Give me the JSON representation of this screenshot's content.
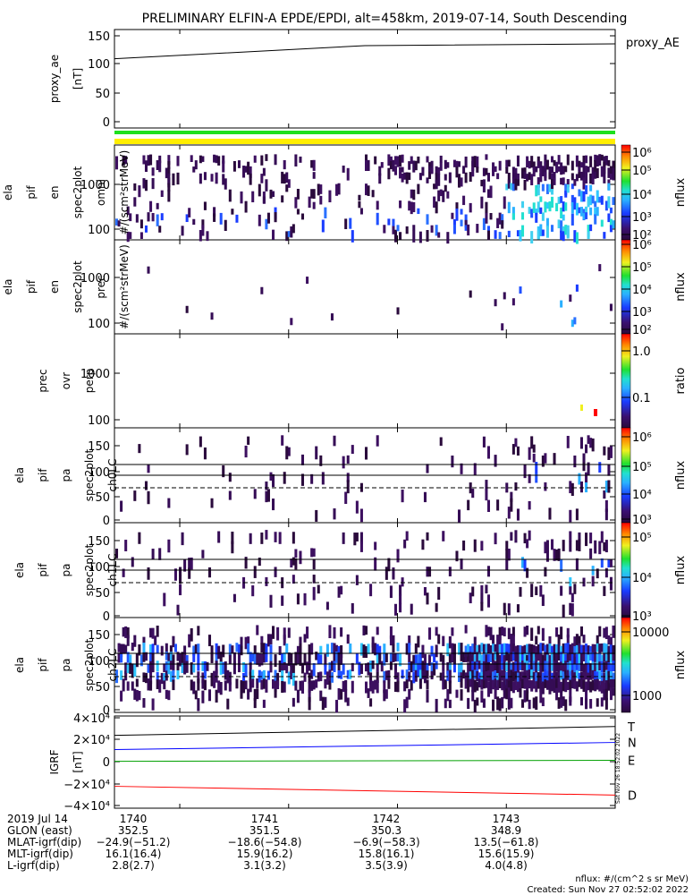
{
  "title": "PRELIMINARY ELFIN-A EPDE/EPDI, alt=458km, 2019-07-14, South Descending",
  "chart_data": [
    {
      "id": "proxy_ae",
      "type": "line",
      "ylabel": [
        "proxy_ae",
        "[nT]"
      ],
      "yticks": [
        "150",
        "100",
        "50",
        "0"
      ],
      "ylim": [
        -10,
        155
      ],
      "series": [
        {
          "name": "proxy_AE",
          "x": [
            0,
            0.5,
            1
          ],
          "values": [
            106,
            128,
            131
          ]
        }
      ]
    },
    {
      "id": "omni",
      "type": "heatmap",
      "ylabel": [
        "ela",
        "pif",
        "en",
        "spec2plot",
        "omni",
        "#/(scm²strMeV)"
      ],
      "yticks": [
        "1000",
        "100"
      ],
      "yscale": "log",
      "ylim": [
        80,
        9000
      ],
      "colorbar": {
        "label": "nflux",
        "ticks": [
          "10⁶",
          "10⁵",
          "10⁴",
          "10³",
          "10²"
        ]
      }
    },
    {
      "id": "prec",
      "type": "heatmap",
      "ylabel": [
        "ela",
        "pif",
        "en",
        "spec2plot",
        "prec",
        "#/(scm²strMeV)"
      ],
      "yticks": [
        "1000",
        "100"
      ],
      "yscale": "log",
      "ylim": [
        80,
        9000
      ],
      "colorbar": {
        "label": "nflux",
        "ticks": [
          "10⁶",
          "10⁵",
          "10⁴",
          "10³",
          "10²"
        ]
      }
    },
    {
      "id": "ratio",
      "type": "heatmap",
      "ylabel": [
        "prec",
        "ovr",
        "perp"
      ],
      "yticks": [
        "1000",
        "100"
      ],
      "yscale": "log",
      "ylim": [
        80,
        9000
      ],
      "colorbar": {
        "label": "ratio",
        "ticks": [
          "1.0",
          "0.1"
        ]
      }
    },
    {
      "id": "ch0",
      "type": "heatmap",
      "ylabel": [
        "ela",
        "pif",
        "pa",
        "spec2plot",
        "ch0LC"
      ],
      "yticks": [
        "150",
        "100",
        "50",
        "0"
      ],
      "ylim": [
        -10,
        185
      ],
      "colorbar": {
        "label": "nflux",
        "ticks": [
          "10⁶",
          "10⁵",
          "10⁴",
          "10³"
        ]
      }
    },
    {
      "id": "ch1",
      "type": "heatmap",
      "ylabel": [
        "ela",
        "pif",
        "pa",
        "spec2plot",
        "ch1LC"
      ],
      "yticks": [
        "150",
        "100",
        "50",
        "0"
      ],
      "ylim": [
        -10,
        185
      ],
      "colorbar": {
        "label": "nflux",
        "ticks": [
          "10⁵",
          "10⁴",
          "10³"
        ]
      }
    },
    {
      "id": "ch2",
      "type": "heatmap",
      "ylabel": [
        "ela",
        "pif",
        "pa",
        "spec2plot",
        "ch2LC"
      ],
      "yticks": [
        "150",
        "100",
        "50",
        "0"
      ],
      "ylim": [
        -10,
        185
      ],
      "colorbar": {
        "label": "nflux",
        "ticks": [
          "10000",
          "1000"
        ]
      }
    },
    {
      "id": "igrf",
      "type": "line",
      "ylabel": [
        "IGRF",
        "[nT]"
      ],
      "yticks": [
        "4×10⁴",
        "2×10⁴",
        "0",
        "−2×10⁴",
        "−4×10⁴"
      ],
      "ylim": [
        -40000,
        40000
      ],
      "series": [
        {
          "name": "T",
          "color": "#000000",
          "x": [
            0,
            1
          ],
          "values": [
            24000,
            32000
          ]
        },
        {
          "name": "N",
          "color": "#0000ff",
          "x": [
            0,
            1
          ],
          "values": [
            11000,
            17500
          ]
        },
        {
          "name": "E",
          "color": "#00a000",
          "x": [
            0,
            1
          ],
          "values": [
            300,
            1200
          ]
        },
        {
          "name": "D",
          "color": "#ff0000",
          "x": [
            0,
            1
          ],
          "values": [
            -22500,
            -30500
          ]
        }
      ]
    }
  ],
  "orbit_table": {
    "labels": [
      "2019 Jul 14",
      "GLON (east)",
      "MLAT-igrf(dip)",
      "MLT-igrf(dip)",
      "L-igrf(dip)"
    ],
    "columns": [
      [
        "1740",
        "352.5",
        "−24.9(−51.2)",
        "16.1(16.4)",
        "2.8(2.7)"
      ],
      [
        "1741",
        "351.5",
        "−18.6(−54.8)",
        "15.9(16.2)",
        "3.1(3.2)"
      ],
      [
        "1742",
        "350.3",
        "−6.9(−58.3)",
        "15.8(16.1)",
        "3.5(3.9)"
      ],
      [
        "1743",
        "348.9",
        "13.5(−61.8)",
        "15.6(15.9)",
        "4.0(4.8)"
      ]
    ]
  },
  "footer": {
    "units": "nflux: #/(cm^2 s sr MeV)",
    "created": "Created: Sun Nov 27 02:52:02 2022",
    "stamp": "Sat Nov 26 18:52:02 2022"
  }
}
